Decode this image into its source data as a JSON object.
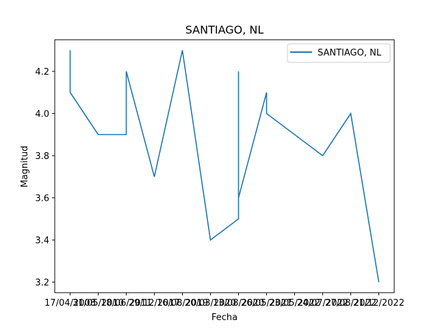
{
  "chart_data": {
    "type": "line",
    "title": "SANTIAGO, NL",
    "xlabel": "Fecha",
    "ylabel": "Magnitud",
    "x_ticks": [
      "17/04/2008",
      "31/05/2010",
      "18/06/2011",
      "29/12/2017",
      "16/08/2019",
      "20/03/2020",
      "13/08/2020",
      "26/05/2021",
      "23/05/2022",
      "24/07/2022",
      "27/08/2022",
      "21/12/2022"
    ],
    "y_ticks": [
      "3.2",
      "3.4",
      "3.6",
      "3.8",
      "4.0",
      "4.2"
    ],
    "ylim": [
      3.15,
      4.35
    ],
    "grid": false,
    "legend_position": "top-right",
    "series": [
      {
        "name": "SANTIAGO, NL",
        "color": "#1f77b4",
        "points": [
          {
            "x": 0,
            "y": 4.3
          },
          {
            "x": 0,
            "y": 4.1
          },
          {
            "x": 1,
            "y": 3.9
          },
          {
            "x": 2,
            "y": 3.9
          },
          {
            "x": 2,
            "y": 4.2
          },
          {
            "x": 3,
            "y": 3.7
          },
          {
            "x": 4,
            "y": 4.3
          },
          {
            "x": 5,
            "y": 3.4
          },
          {
            "x": 6,
            "y": 3.5
          },
          {
            "x": 6,
            "y": 4.2
          },
          {
            "x": 6,
            "y": 3.6
          },
          {
            "x": 7,
            "y": 4.1
          },
          {
            "x": 7,
            "y": 4.0
          },
          {
            "x": 9,
            "y": 3.8
          },
          {
            "x": 10,
            "y": 4.0
          },
          {
            "x": 11,
            "y": 3.2
          }
        ]
      }
    ]
  }
}
